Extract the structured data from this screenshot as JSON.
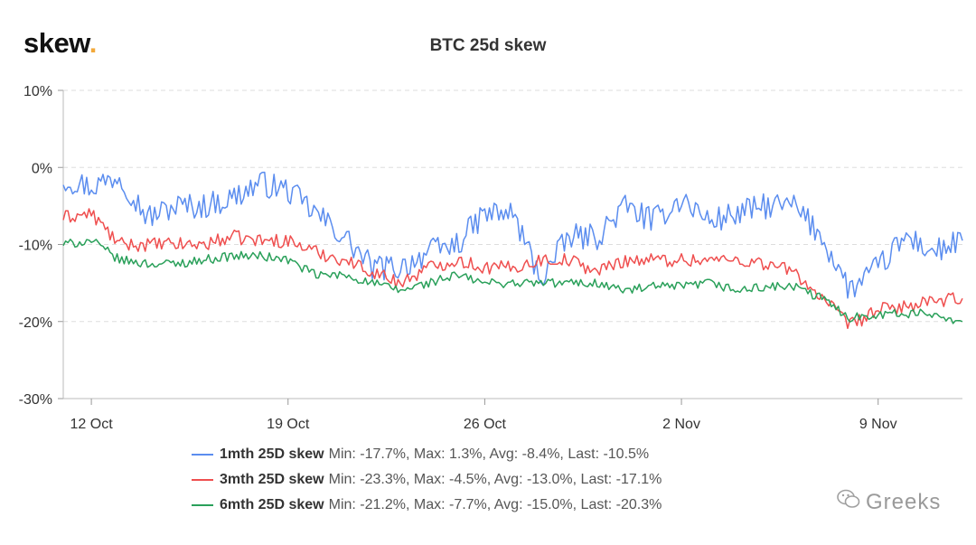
{
  "brand": {
    "logo_text": "skew",
    "logo_dot": "."
  },
  "watermark": {
    "text": "Greeks",
    "icon": "wechat-icon"
  },
  "chart_data": {
    "type": "line",
    "title": "BTC 25d skew",
    "xlabel": "",
    "ylabel": "",
    "x_range": [
      "2020-10-11",
      "2020-11-12"
    ],
    "x_ticks": [
      {
        "date": "2020-10-12",
        "label": "12 Oct"
      },
      {
        "date": "2020-10-19",
        "label": "19 Oct"
      },
      {
        "date": "2020-10-26",
        "label": "26 Oct"
      },
      {
        "date": "2020-11-02",
        "label": "2 Nov"
      },
      {
        "date": "2020-11-09",
        "label": "9 Nov"
      }
    ],
    "ylim": [
      -30,
      10
    ],
    "y_ticks": [
      {
        "value": 10,
        "label": "10%"
      },
      {
        "value": 0,
        "label": "0%"
      },
      {
        "value": -10,
        "label": "-10%"
      },
      {
        "value": -20,
        "label": "-20%"
      },
      {
        "value": -30,
        "label": "-30%"
      }
    ],
    "grid": true,
    "legend_position": "bottom",
    "series": [
      {
        "name": "1mth 25D skew",
        "stats": "Min: -17.7%, Max: 1.3%, Avg: -8.4%, Last: -10.5%",
        "color": "#5b8def",
        "x": [
          "2020-10-11",
          "2020-10-12",
          "2020-10-13",
          "2020-10-14",
          "2020-10-15",
          "2020-10-16",
          "2020-10-17",
          "2020-10-18",
          "2020-10-19",
          "2020-10-20",
          "2020-10-21",
          "2020-10-22",
          "2020-10-23",
          "2020-10-24",
          "2020-10-25",
          "2020-10-26",
          "2020-10-27",
          "2020-10-28",
          "2020-10-29",
          "2020-10-30",
          "2020-10-31",
          "2020-11-01",
          "2020-11-02",
          "2020-11-03",
          "2020-11-04",
          "2020-11-05",
          "2020-11-06",
          "2020-11-07",
          "2020-11-08",
          "2020-11-09",
          "2020-11-10",
          "2020-11-11",
          "2020-11-12"
        ],
        "y": [
          -1.5,
          -2.5,
          -1,
          -6.5,
          -5,
          -5,
          -4,
          -2,
          -3,
          -6,
          -9,
          -13,
          -13,
          -11,
          -10,
          -6,
          -6,
          -14.5,
          -9,
          -9,
          -5,
          -7,
          -4,
          -7,
          -6,
          -5,
          -5,
          -9,
          -16,
          -13,
          -9,
          -11,
          -9.5
        ]
      },
      {
        "name": "3mth 25D skew",
        "stats": "Min: -23.3%, Max: -4.5%, Avg: -13.0%, Last: -17.1%",
        "color": "#ef4f4f",
        "x": [
          "2020-10-11",
          "2020-10-12",
          "2020-10-13",
          "2020-10-14",
          "2020-10-15",
          "2020-10-16",
          "2020-10-17",
          "2020-10-18",
          "2020-10-19",
          "2020-10-20",
          "2020-10-21",
          "2020-10-22",
          "2020-10-23",
          "2020-10-24",
          "2020-10-25",
          "2020-10-26",
          "2020-10-27",
          "2020-10-28",
          "2020-10-29",
          "2020-10-30",
          "2020-10-31",
          "2020-11-01",
          "2020-11-02",
          "2020-11-03",
          "2020-11-04",
          "2020-11-05",
          "2020-11-06",
          "2020-11-07",
          "2020-11-08",
          "2020-11-09",
          "2020-11-10",
          "2020-11-11",
          "2020-11-12"
        ],
        "y": [
          -6.5,
          -6,
          -10,
          -10,
          -10,
          -10,
          -9,
          -9.5,
          -9.5,
          -11,
          -12,
          -13.5,
          -15,
          -13,
          -12,
          -13,
          -13,
          -12,
          -12,
          -13.5,
          -12,
          -12,
          -12,
          -12,
          -12,
          -12.5,
          -13.5,
          -17,
          -20.5,
          -18.5,
          -18,
          -17.5,
          -17
        ]
      },
      {
        "name": "6mth 25D skew",
        "stats": "Min: -21.2%, Max: -7.7%, Avg: -15.0%, Last: -20.3%",
        "color": "#2aa05a",
        "x": [
          "2020-10-11",
          "2020-10-12",
          "2020-10-13",
          "2020-10-14",
          "2020-10-15",
          "2020-10-16",
          "2020-10-17",
          "2020-10-18",
          "2020-10-19",
          "2020-10-20",
          "2020-10-21",
          "2020-10-22",
          "2020-10-23",
          "2020-10-24",
          "2020-10-25",
          "2020-10-26",
          "2020-10-27",
          "2020-10-28",
          "2020-10-29",
          "2020-10-30",
          "2020-10-31",
          "2020-11-01",
          "2020-11-02",
          "2020-11-03",
          "2020-11-04",
          "2020-11-05",
          "2020-11-06",
          "2020-11-07",
          "2020-11-08",
          "2020-11-09",
          "2020-11-10",
          "2020-11-11",
          "2020-11-12"
        ],
        "y": [
          -10,
          -9.5,
          -12,
          -12.5,
          -12.5,
          -12,
          -11.5,
          -11.5,
          -12,
          -14,
          -14,
          -15,
          -16,
          -15,
          -14,
          -15,
          -15,
          -15,
          -15,
          -15,
          -16,
          -15.5,
          -15.5,
          -15,
          -16,
          -15.5,
          -15.5,
          -17,
          -19.5,
          -19,
          -19,
          -19,
          -20
        ]
      }
    ]
  }
}
